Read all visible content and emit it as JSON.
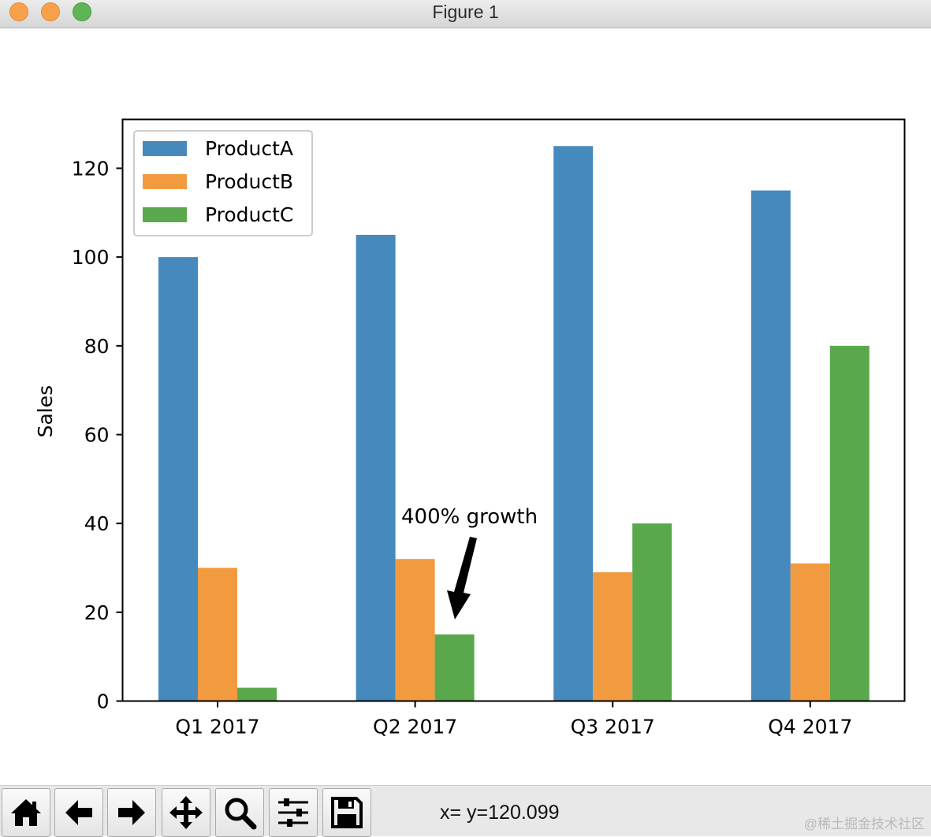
{
  "window": {
    "title": "Figure 1"
  },
  "chart_data": {
    "type": "bar",
    "categories": [
      "Q1 2017",
      "Q2 2017",
      "Q3 2017",
      "Q4 2017"
    ],
    "series": [
      {
        "name": "ProductA",
        "color": "#4689bd",
        "values": [
          100,
          105,
          125,
          115
        ]
      },
      {
        "name": "ProductB",
        "color": "#f29a3f",
        "values": [
          30,
          32,
          29,
          31
        ]
      },
      {
        "name": "ProductC",
        "color": "#5aa84c",
        "values": [
          3,
          15,
          40,
          80
        ]
      }
    ],
    "xlabel": "",
    "ylabel": "Sales",
    "ylim": [
      0,
      131
    ],
    "yticks": [
      0,
      20,
      40,
      60,
      80,
      100,
      120
    ],
    "legend_position": "upper-left",
    "grid": false,
    "annotation": {
      "text": "400% growth",
      "target": {
        "category": "Q2 2017",
        "series": "ProductC",
        "value": 15
      }
    }
  },
  "toolbar": {
    "buttons": [
      {
        "name": "home-button",
        "icon": "home-icon"
      },
      {
        "name": "back-button",
        "icon": "arrow-left-icon"
      },
      {
        "name": "forward-button",
        "icon": "arrow-right-icon"
      },
      {
        "name": "pan-button",
        "icon": "move-icon"
      },
      {
        "name": "zoom-button",
        "icon": "magnifier-icon"
      },
      {
        "name": "configure-subplots-button",
        "icon": "sliders-icon"
      },
      {
        "name": "save-button",
        "icon": "floppy-disk-icon"
      }
    ],
    "coordinates": "x= y=120.099"
  },
  "watermark": "@稀土掘金技术社区"
}
